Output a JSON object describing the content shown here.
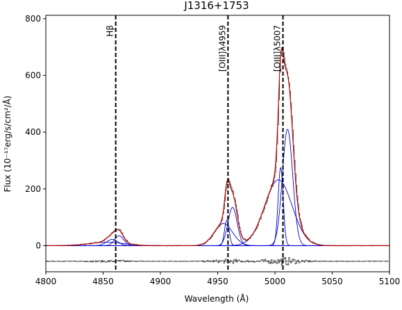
{
  "chart_data": {
    "type": "line",
    "title": "J1316+1753",
    "xlabel": "Wavelength (Å)",
    "ylabel": "Flux (10⁻¹⁷erg/s/cm²/Å)",
    "xlim": [
      4800,
      5100
    ],
    "ylim": [
      -92,
      812
    ],
    "x_ticks": [
      4800,
      4850,
      4900,
      4950,
      5000,
      5050,
      5100
    ],
    "y_ticks": [
      0,
      200,
      400,
      600,
      800
    ],
    "grid": false,
    "legend": "none",
    "residual_baseline": -55,
    "reference_lines": [
      {
        "label": "Hβ",
        "x": 4861
      },
      {
        "label": "[OIII]λ4959",
        "x": 4959
      },
      {
        "label": "[OIII]λ5007",
        "x": 5007
      }
    ],
    "gaussian_components": [
      {
        "center": 4858,
        "amplitude": 22,
        "sigma": 5
      },
      {
        "center": 4864,
        "amplitude": 35,
        "sigma": 4
      },
      {
        "center": 4955,
        "amplitude": 78,
        "sigma": 8
      },
      {
        "center": 4958,
        "amplitude": 90,
        "sigma": 2
      },
      {
        "center": 4963,
        "amplitude": 135,
        "sigma": 4
      },
      {
        "center": 5003,
        "amplitude": 232,
        "sigma": 12
      },
      {
        "center": 5005,
        "amplitude": 275,
        "sigma": 2.2
      },
      {
        "center": 5011,
        "amplitude": 410,
        "sigma": 4.5
      },
      {
        "center": 4853,
        "amplitude": 12,
        "sigma": 15
      }
    ],
    "colors": {
      "data": "#333333",
      "model": "#cc0000",
      "components": "#0000cc",
      "continuum": "#0000cc",
      "reference": "#000000"
    }
  }
}
